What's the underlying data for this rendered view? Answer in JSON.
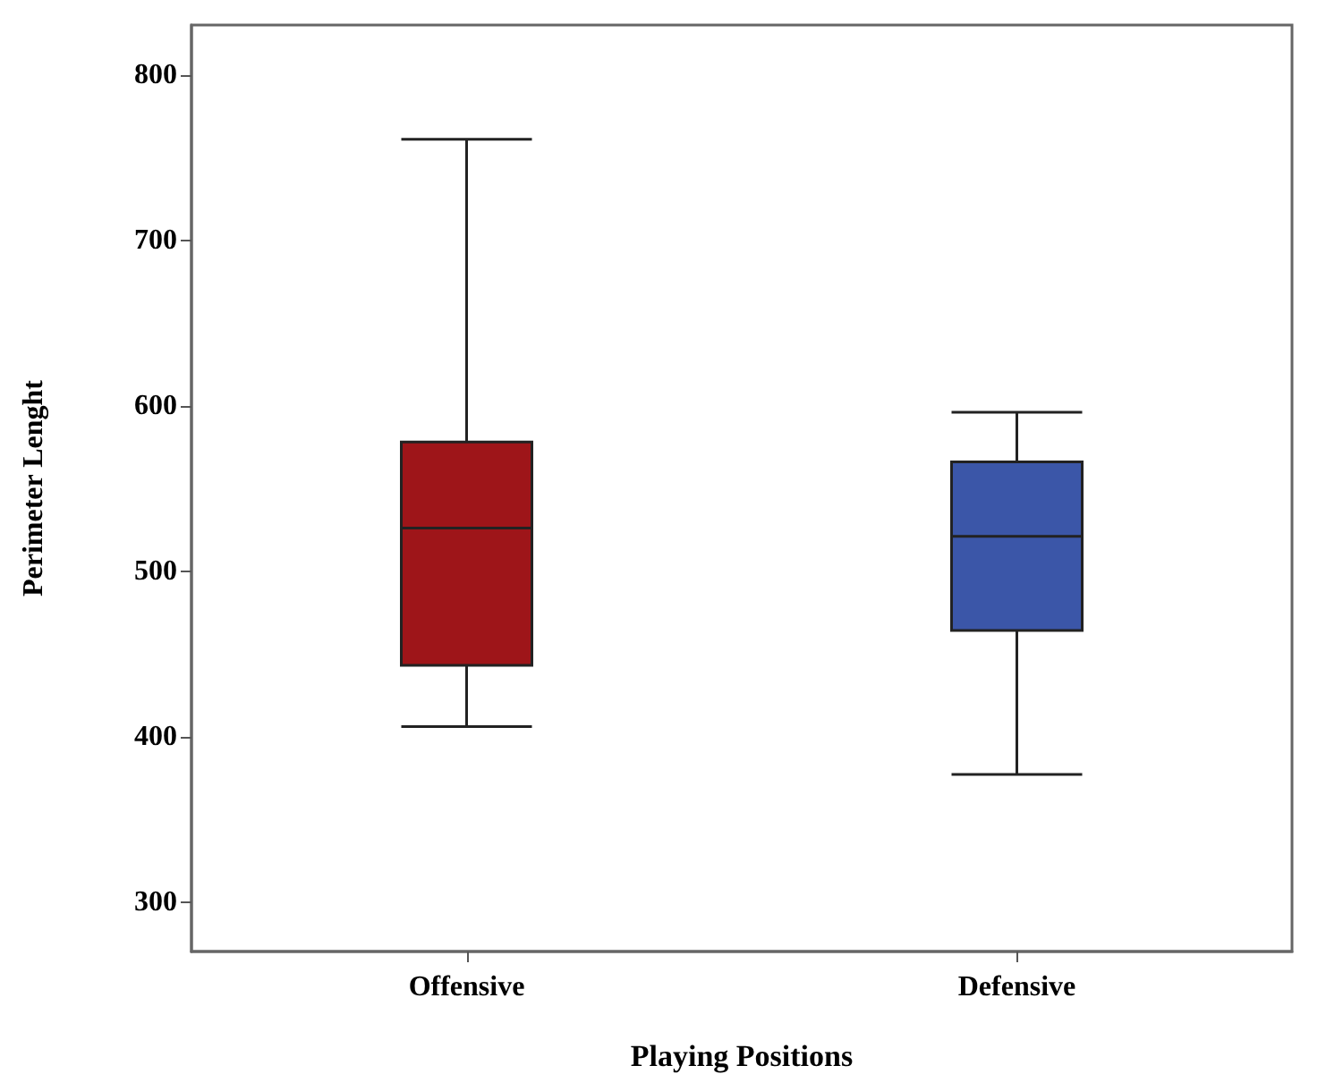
{
  "chart_data": {
    "type": "box",
    "xlabel": "Playing Positions",
    "ylabel": "Perimeter Lenght",
    "categories": [
      "Offensive",
      "Defensive"
    ],
    "colors": [
      "#9e1519",
      "#3b56a8"
    ],
    "boxes": [
      {
        "low": 406,
        "q1": 443,
        "median": 526,
        "q3": 578,
        "high": 761
      },
      {
        "low": 377,
        "q1": 464,
        "median": 521,
        "q3": 566,
        "high": 596
      }
    ],
    "ylim": [
      270,
      830
    ],
    "yticks": [
      300,
      400,
      500,
      600,
      700,
      800
    ],
    "grid": false
  }
}
